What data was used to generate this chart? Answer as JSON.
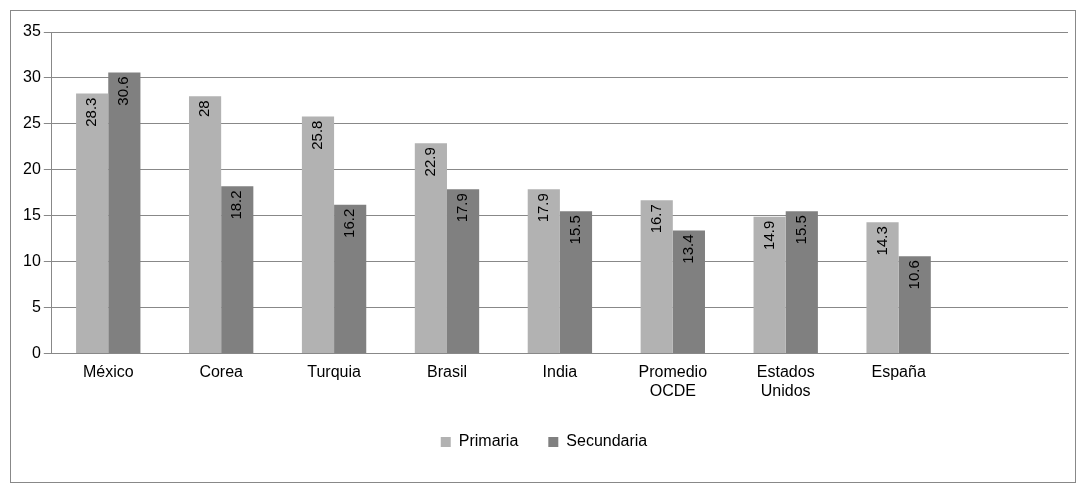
{
  "chart_data": {
    "type": "bar",
    "categories": [
      "México",
      "Corea",
      "Turquia",
      "Brasil",
      "India",
      "Promedio OCDE",
      "Estados Unidos",
      "España",
      null
    ],
    "series": [
      {
        "name": "Primaria",
        "color": "#b2b2b2",
        "values": [
          28.3,
          28,
          25.8,
          22.9,
          17.9,
          16.7,
          14.9,
          14.3,
          null
        ]
      },
      {
        "name": "Secundaria",
        "color": "#808080",
        "values": [
          30.6,
          18.2,
          16.2,
          17.9,
          15.5,
          13.4,
          15.5,
          10.6,
          null
        ]
      }
    ],
    "ylim": [
      0,
      35
    ],
    "yticks": [
      0,
      5,
      10,
      15,
      20,
      25,
      30,
      35
    ],
    "grid": "y",
    "legend": "bottom",
    "data_labels": true
  }
}
